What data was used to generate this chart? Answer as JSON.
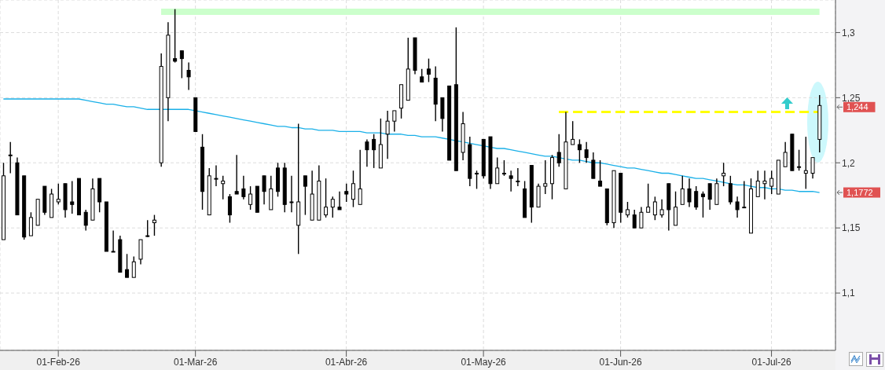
{
  "chart_data": {
    "type": "candlestick",
    "color": "#000000",
    "categories": [
      null,
      null,
      null,
      null,
      null,
      null,
      null,
      null,
      "01-Feb-26",
      null,
      null,
      null,
      null,
      null,
      null,
      null,
      null,
      null,
      null,
      null,
      null,
      null,
      null,
      null,
      null,
      null,
      null,
      null,
      "01-Mar-26",
      null,
      null,
      null,
      null,
      null,
      null,
      null,
      null,
      null,
      null,
      null,
      null,
      null,
      null,
      null,
      null,
      null,
      null,
      null,
      null,
      null,
      "01-Abr-26",
      null,
      null,
      null,
      null,
      null,
      null,
      null,
      null,
      null,
      null,
      null,
      null,
      null,
      null,
      null,
      null,
      null,
      null,
      null,
      "01-May-26",
      null,
      null,
      null,
      null,
      null,
      null,
      null,
      null,
      null,
      null,
      null,
      null,
      null,
      null,
      null,
      null,
      null,
      null,
      null,
      "01-Jun-26",
      null,
      null,
      null,
      null,
      null,
      null,
      null,
      null,
      null,
      null,
      null,
      null,
      null,
      null,
      null,
      null,
      null,
      null,
      null,
      null,
      null,
      "01-Jul-26",
      null,
      null,
      null,
      null,
      null,
      null,
      null
    ],
    "ohlc": [
      [
        1.141,
        1.2,
        1.141,
        1.19
      ],
      [
        1.206,
        1.216,
        1.192,
        1.206
      ],
      [
        1.2,
        1.204,
        1.16,
        1.16
      ],
      [
        1.19,
        1.19,
        1.141,
        1.143
      ],
      [
        1.144,
        1.162,
        1.144,
        1.158
      ],
      [
        1.152,
        1.172,
        1.152,
        1.172
      ],
      [
        1.182,
        1.182,
        1.16,
        1.162
      ],
      [
        1.158,
        1.18,
        1.158,
        1.176
      ],
      [
        1.17,
        1.184,
        1.168,
        1.172
      ],
      [
        1.184,
        1.184,
        1.158,
        1.164
      ],
      [
        1.17,
        1.186,
        1.161,
        1.168
      ],
      [
        1.188,
        1.188,
        1.16,
        1.16
      ],
      [
        1.162,
        1.164,
        1.148,
        1.152
      ],
      [
        1.156,
        1.188,
        1.156,
        1.18
      ],
      [
        1.188,
        1.188,
        1.162,
        1.17
      ],
      [
        1.17,
        1.17,
        1.132,
        1.132
      ],
      [
        1.132,
        1.148,
        1.132,
        1.132
      ],
      [
        1.141,
        1.144,
        1.116,
        1.116
      ],
      [
        1.118,
        1.13,
        1.112,
        1.112
      ],
      [
        1.112,
        1.128,
        1.112,
        1.124
      ],
      [
        1.126,
        1.141,
        1.122,
        1.141
      ],
      [
        1.144,
        1.156,
        1.143,
        1.144
      ],
      [
        1.154,
        1.16,
        1.144,
        1.156
      ],
      [
        1.2,
        1.284,
        1.197,
        1.274
      ],
      [
        1.25,
        1.308,
        1.232,
        1.298
      ],
      [
        1.28,
        1.318,
        1.277,
        1.278
      ],
      [
        1.286,
        1.286,
        1.265,
        1.28
      ],
      [
        1.271,
        1.277,
        1.256,
        1.266
      ],
      [
        1.25,
        1.25,
        1.224,
        1.224
      ],
      [
        1.212,
        1.222,
        1.164,
        1.178
      ],
      [
        1.16,
        1.196,
        1.16,
        1.19
      ],
      [
        1.188,
        1.198,
        1.182,
        1.188
      ],
      [
        1.184,
        1.19,
        1.172,
        1.186
      ],
      [
        1.174,
        1.176,
        1.154,
        1.16
      ],
      [
        1.178,
        1.206,
        1.176,
        1.176
      ],
      [
        1.18,
        1.19,
        1.172,
        1.174
      ],
      [
        1.168,
        1.182,
        1.164,
        1.176
      ],
      [
        1.182,
        1.182,
        1.162,
        1.162
      ],
      [
        1.19,
        1.19,
        1.168,
        1.178
      ],
      [
        1.164,
        1.19,
        1.164,
        1.18
      ],
      [
        1.196,
        1.2,
        1.174,
        1.178
      ],
      [
        1.196,
        1.2,
        1.162,
        1.168
      ],
      [
        1.17,
        1.19,
        1.162,
        1.17
      ],
      [
        1.152,
        1.23,
        1.13,
        1.17
      ],
      [
        1.19,
        1.19,
        1.16,
        1.182
      ],
      [
        1.156,
        1.194,
        1.156,
        1.176
      ],
      [
        1.156,
        1.198,
        1.156,
        1.186
      ],
      [
        1.16,
        1.188,
        1.158,
        1.166
      ],
      [
        1.166,
        1.174,
        1.158,
        1.172
      ],
      [
        1.166,
        1.178,
        1.164,
        1.164
      ],
      [
        1.178,
        1.184,
        1.17,
        1.176
      ],
      [
        1.172,
        1.194,
        1.166,
        1.184
      ],
      [
        1.168,
        1.21,
        1.168,
        1.18
      ],
      [
        1.216,
        1.218,
        1.197,
        1.21
      ],
      [
        1.218,
        1.222,
        1.196,
        1.21
      ],
      [
        1.196,
        1.234,
        1.196,
        1.214
      ],
      [
        1.222,
        1.24,
        1.203,
        1.232
      ],
      [
        1.232,
        1.24,
        1.224,
        1.24
      ],
      [
        1.242,
        1.26,
        1.234,
        1.26
      ],
      [
        1.248,
        1.296,
        1.248,
        1.272
      ],
      [
        1.296,
        1.296,
        1.268,
        1.271
      ],
      [
        1.266,
        1.272,
        1.262,
        1.262
      ],
      [
        1.272,
        1.28,
        1.262,
        1.268
      ],
      [
        1.265,
        1.274,
        1.232,
        1.245
      ],
      [
        1.25,
        1.25,
        1.224,
        1.234
      ],
      [
        1.259,
        1.259,
        1.202,
        1.202
      ],
      [
        1.26,
        1.304,
        1.194,
        1.194
      ],
      [
        1.208,
        1.239,
        1.202,
        1.23
      ],
      [
        1.214,
        1.22,
        1.182,
        1.188
      ],
      [
        1.192,
        1.194,
        1.18,
        1.192
      ],
      [
        1.218,
        1.218,
        1.188,
        1.19
      ],
      [
        1.22,
        1.22,
        1.18,
        1.184
      ],
      [
        1.184,
        1.204,
        1.184,
        1.196
      ],
      [
        1.192,
        1.202,
        1.19,
        1.192
      ],
      [
        1.19,
        1.194,
        1.178,
        1.188
      ],
      [
        1.186,
        1.196,
        1.182,
        1.186
      ],
      [
        1.18,
        1.186,
        1.158,
        1.158
      ],
      [
        1.198,
        1.198,
        1.154,
        1.166
      ],
      [
        1.166,
        1.184,
        1.166,
        1.182
      ],
      [
        1.182,
        1.202,
        1.176,
        1.184
      ],
      [
        1.184,
        1.206,
        1.172,
        1.204
      ],
      [
        1.208,
        1.222,
        1.197,
        1.2
      ],
      [
        1.18,
        1.239,
        1.18,
        1.216
      ],
      [
        1.214,
        1.232,
        1.214,
        1.218
      ],
      [
        1.214,
        1.218,
        1.2,
        1.21
      ],
      [
        1.21,
        1.216,
        1.2,
        1.204
      ],
      [
        1.202,
        1.208,
        1.188,
        1.188
      ],
      [
        1.186,
        1.202,
        1.182,
        1.182
      ],
      [
        1.18,
        1.18,
        1.152,
        1.154
      ],
      [
        1.154,
        1.194,
        1.15,
        1.194
      ],
      [
        1.192,
        1.192,
        1.154,
        1.162
      ],
      [
        1.16,
        1.17,
        1.158,
        1.164
      ],
      [
        1.16,
        1.164,
        1.15,
        1.15
      ],
      [
        1.15,
        1.166,
        1.15,
        1.162
      ],
      [
        1.162,
        1.184,
        1.162,
        1.166
      ],
      [
        1.16,
        1.174,
        1.156,
        1.17
      ],
      [
        1.16,
        1.172,
        1.158,
        1.164
      ],
      [
        1.184,
        1.184,
        1.148,
        1.164
      ],
      [
        1.152,
        1.178,
        1.152,
        1.166
      ],
      [
        1.168,
        1.19,
        1.168,
        1.18
      ],
      [
        1.18,
        1.188,
        1.166,
        1.17
      ],
      [
        1.178,
        1.182,
        1.164,
        1.166
      ],
      [
        1.176,
        1.178,
        1.158,
        1.174
      ],
      [
        1.184,
        1.184,
        1.164,
        1.172
      ],
      [
        1.168,
        1.188,
        1.168,
        1.184
      ],
      [
        1.19,
        1.2,
        1.182,
        1.192
      ],
      [
        1.184,
        1.19,
        1.168,
        1.17
      ],
      [
        1.17,
        1.174,
        1.158,
        1.164
      ],
      [
        1.166,
        1.186,
        1.166,
        1.166
      ],
      [
        1.146,
        1.188,
        1.146,
        1.18
      ],
      [
        1.174,
        1.194,
        1.174,
        1.186
      ],
      [
        1.184,
        1.194,
        1.172,
        1.186
      ],
      [
        1.182,
        1.194,
        1.176,
        1.188
      ],
      [
        1.176,
        1.202,
        1.176,
        1.202
      ],
      [
        1.197,
        1.216,
        1.197,
        1.208
      ],
      [
        1.222,
        1.222,
        1.194,
        1.194
      ],
      [
        1.197,
        1.21,
        1.194,
        1.197
      ],
      [
        1.192,
        1.22,
        1.18,
        1.194
      ],
      [
        1.192,
        1.204,
        1.188,
        1.204
      ],
      [
        1.218,
        1.252,
        1.208,
        1.244
      ]
    ],
    "series": [
      {
        "type": "line",
        "color": "#ccffcc",
        "values": [
          null,
          null,
          null,
          null,
          null,
          null,
          null,
          null,
          null,
          null,
          null,
          null,
          null,
          null,
          null,
          null,
          null,
          null,
          null,
          null,
          null,
          null,
          null,
          1.316,
          1.316,
          1.316,
          1.316,
          1.316,
          1.316,
          1.316,
          1.316,
          1.316,
          1.316,
          1.316,
          1.316,
          1.316,
          1.316,
          1.316,
          1.316,
          1.316,
          1.316,
          1.316,
          1.316,
          1.316,
          1.316,
          1.316,
          1.316,
          1.316,
          1.316,
          1.316,
          1.316,
          1.316,
          1.316,
          1.316,
          1.316,
          1.316,
          1.316,
          1.316,
          1.316,
          1.316,
          1.316,
          1.316,
          1.316,
          1.316,
          1.316,
          1.316,
          1.316,
          1.316,
          1.316,
          1.316,
          1.316,
          1.316,
          1.316,
          1.316,
          1.316,
          1.316,
          1.316,
          1.316,
          1.316,
          1.316,
          1.316,
          1.316,
          1.316,
          1.316,
          1.316,
          1.316,
          1.316,
          1.316,
          1.316,
          1.316,
          1.316,
          1.316,
          1.316,
          1.316,
          1.316,
          1.316,
          1.316,
          1.316,
          1.316,
          1.316,
          1.316,
          1.316,
          1.316,
          1.316,
          1.316,
          1.316,
          1.316,
          1.316,
          1.316,
          1.316,
          1.316,
          1.316,
          1.316,
          1.316,
          1.316,
          1.316,
          1.316,
          1.316,
          1.316,
          1.316
        ]
      },
      {
        "type": "line",
        "color": "#ffff00",
        "line_style": "dashed",
        "values": [
          null,
          null,
          null,
          null,
          null,
          null,
          null,
          null,
          null,
          null,
          null,
          null,
          null,
          null,
          null,
          null,
          null,
          null,
          null,
          null,
          null,
          null,
          null,
          null,
          null,
          null,
          null,
          null,
          null,
          null,
          null,
          null,
          null,
          null,
          null,
          null,
          null,
          null,
          null,
          null,
          null,
          null,
          null,
          null,
          null,
          null,
          null,
          null,
          null,
          null,
          null,
          null,
          null,
          null,
          null,
          null,
          null,
          null,
          null,
          null,
          null,
          null,
          null,
          null,
          null,
          null,
          null,
          null,
          null,
          null,
          null,
          null,
          null,
          null,
          null,
          null,
          null,
          null,
          null,
          null,
          null,
          1.239,
          1.239,
          1.239,
          1.239,
          1.239,
          1.239,
          1.239,
          1.239,
          1.239,
          1.239,
          1.239,
          1.239,
          1.239,
          1.239,
          1.239,
          1.239,
          1.239,
          1.239,
          1.239,
          1.239,
          1.239,
          1.239,
          1.239,
          1.239,
          1.239,
          1.239,
          1.239,
          1.239,
          1.239,
          1.239,
          1.239,
          1.239,
          1.239,
          1.239,
          1.239,
          1.239,
          1.239,
          1.239,
          1.239
        ]
      },
      {
        "type": "line",
        "color": "#1ab0e8",
        "values": [
          1.249,
          1.249,
          1.249,
          1.249,
          1.249,
          1.249,
          1.249,
          1.249,
          1.249,
          1.249,
          1.249,
          1.249,
          1.248,
          1.247,
          1.246,
          1.245,
          1.245,
          1.244,
          1.243,
          1.243,
          1.242,
          1.241,
          1.241,
          1.241,
          1.241,
          1.241,
          1.241,
          1.241,
          1.24,
          1.239,
          1.238,
          1.237,
          1.236,
          1.235,
          1.234,
          1.233,
          1.232,
          1.231,
          1.23,
          1.229,
          1.228,
          1.228,
          1.227,
          1.227,
          1.226,
          1.226,
          1.225,
          1.225,
          1.225,
          1.224,
          1.224,
          1.224,
          1.224,
          1.223,
          1.223,
          1.223,
          1.222,
          1.222,
          1.222,
          1.221,
          1.221,
          1.22,
          1.22,
          1.22,
          1.219,
          1.218,
          1.217,
          1.216,
          1.215,
          1.214,
          1.213,
          1.212,
          1.211,
          1.211,
          1.21,
          1.209,
          1.208,
          1.207,
          1.206,
          1.205,
          1.205,
          1.204,
          1.203,
          1.202,
          1.202,
          1.201,
          1.2,
          1.2,
          1.199,
          1.198,
          1.197,
          1.196,
          1.196,
          1.195,
          1.194,
          1.193,
          1.192,
          1.192,
          1.191,
          1.19,
          1.189,
          1.188,
          1.188,
          1.187,
          1.186,
          1.185,
          1.184,
          1.183,
          1.183,
          1.182,
          1.181,
          1.181,
          1.18,
          1.18,
          1.179,
          1.179,
          1.178,
          1.178,
          1.178,
          1.1772
        ]
      }
    ],
    "annotations": [
      "1,244",
      "1,1772"
    ],
    "ylim": [
      1.056,
      1.325
    ],
    "yticks": [
      {
        "value": 1.1,
        "label": "1,1"
      },
      {
        "value": 1.15,
        "label": "1,15"
      },
      {
        "value": 1.2,
        "label": "1,2"
      },
      {
        "value": 1.25,
        "label": "1,25"
      },
      {
        "value": 1.3,
        "label": "1,3"
      }
    ],
    "grid": true
  }
}
